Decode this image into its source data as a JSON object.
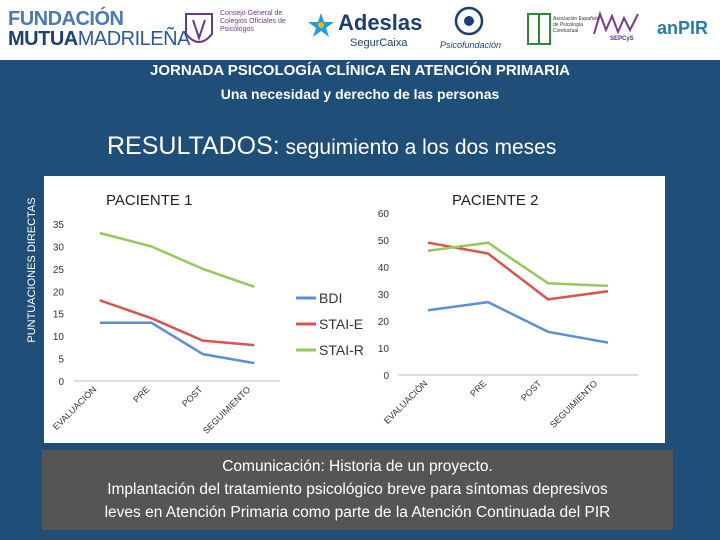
{
  "logos": {
    "fundacion_line1": "FUNDACIÓN",
    "fundacion_line2_bold": "MUTUA",
    "fundacion_line2_light": "MADRILEÑA",
    "consejo": "Consejo General de Colegios Oficiales de Psicólogos",
    "adeslas": "Adeslas",
    "segurcaixa": "SegurCaixa",
    "psicofundacion": "Psicofundación",
    "aeps": "Asociación Española de Psicología Conductual",
    "sepcys": "SEPCyS",
    "anpir": "anPIR"
  },
  "header": {
    "title": "JORNADA PSICOLOGÍA CLÍNICA EN ATENCIÓN PRIMARIA",
    "subtitle": "Una necesidad y derecho de las personas"
  },
  "section": {
    "title_large": "RESULTADOS:",
    "title_small": " seguimiento a los dos meses",
    "y_axis_title": "PUNTUACIONES DIRECTAS"
  },
  "colors": {
    "background": "#1f4e79",
    "bdi": "#5b8fd4",
    "stai_e": "#d9534f",
    "stai_r": "#96c85a"
  },
  "chart_data": [
    {
      "type": "line",
      "title": "PACIENTE 1",
      "categories": [
        "EVALUACIÓN",
        "PRE",
        "POST",
        "SEGUIMIENTO"
      ],
      "ylim": [
        0,
        35
      ],
      "yticks": [
        0,
        5,
        10,
        15,
        20,
        25,
        30,
        35
      ],
      "series": [
        {
          "name": "BDI",
          "color": "#5b8fd4",
          "values": [
            13,
            13,
            6,
            4
          ]
        },
        {
          "name": "STAI-E",
          "color": "#d9534f",
          "values": [
            18,
            14,
            9,
            8
          ]
        },
        {
          "name": "STAI-R",
          "color": "#96c85a",
          "values": [
            33,
            30,
            25,
            21
          ]
        }
      ],
      "legend": "right"
    },
    {
      "type": "line",
      "title": "PACIENTE 2",
      "categories": [
        "EVALUACIÓN",
        "PRE",
        "POST",
        "SEGUIMIENTO"
      ],
      "ylim": [
        0,
        60
      ],
      "yticks": [
        0,
        10,
        20,
        30,
        40,
        50,
        60
      ],
      "series": [
        {
          "name": "BDI",
          "color": "#5b8fd4",
          "values": [
            24,
            27,
            16,
            12
          ]
        },
        {
          "name": "STAI-E",
          "color": "#d9534f",
          "values": [
            49,
            45,
            28,
            31
          ]
        },
        {
          "name": "STAI-R",
          "color": "#96c85a",
          "values": [
            46,
            49,
            34,
            33
          ]
        }
      ]
    }
  ],
  "footer": {
    "line1": "Comunicación: Historia de un proyecto.",
    "line2": "Implantación del tratamiento psicológico breve para síntomas depresivos",
    "line3": "leves en Atención Primaria como parte de la Atención Continuada del PIR"
  }
}
